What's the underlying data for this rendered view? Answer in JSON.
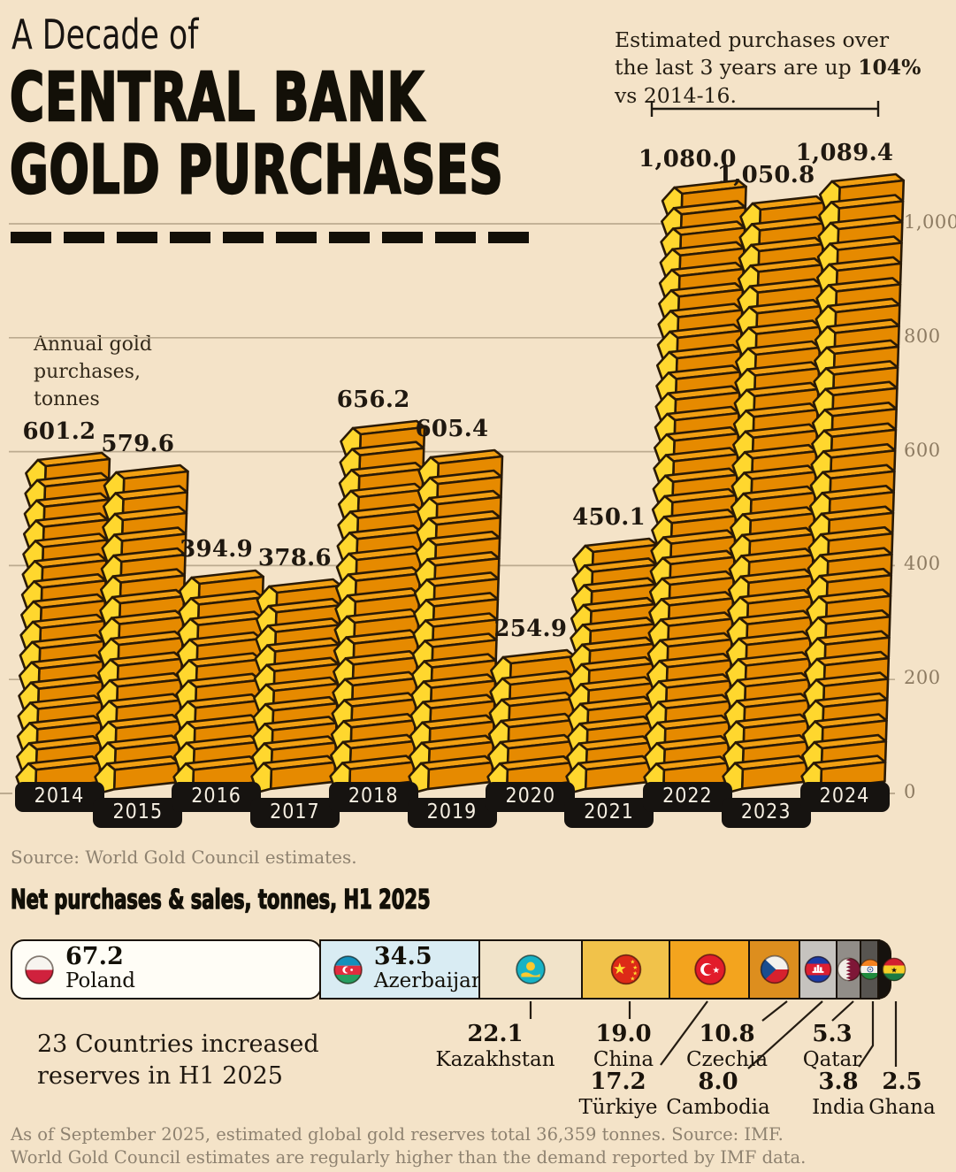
{
  "title": {
    "line1": "A Decade of",
    "line2": "CENTRAL BANK",
    "line3": "GOLD PURCHASES"
  },
  "note": {
    "pre": "Estimated purchases over the last 3 years are up ",
    "bold": "104%",
    "post": " vs 2014-16."
  },
  "source": "Source: World Gold Council estimates.",
  "chart_data": [
    {
      "type": "bar",
      "title": "A Decade of Central Bank Gold Purchases",
      "unit": "tonnes",
      "ylabel": "Annual gold purchases, tonnes",
      "ylabel_lines": [
        "Annual gold",
        "purchases,",
        "tonnes"
      ],
      "categories": [
        "2014",
        "2015",
        "2016",
        "2017",
        "2018",
        "2019",
        "2020",
        "2021",
        "2022",
        "2023",
        "2024"
      ],
      "values": [
        601.2,
        579.6,
        394.9,
        378.6,
        656.2,
        605.4,
        254.9,
        450.1,
        1080.0,
        1050.8,
        1089.4
      ],
      "value_labels": [
        "601.2",
        "579.6",
        "394.9",
        "378.6",
        "656.2",
        "605.4",
        "254.9",
        "450.1",
        "1,080.0",
        "1,050.8",
        "1,089.4"
      ],
      "yticks": [
        0,
        200,
        400,
        600,
        800,
        1000
      ],
      "ytick_labels": [
        "0",
        "200",
        "400",
        "600",
        "800",
        "1,000"
      ],
      "ylim": [
        0,
        1100
      ],
      "grid": true,
      "legend": false,
      "bracket_years": [
        "2022",
        "2023",
        "2024"
      ]
    },
    {
      "type": "bar",
      "variant": "proportional-stacked",
      "title": "Net purchases & sales, tonnes, H1 2025",
      "unit": "tonnes",
      "annotation_lines": [
        "23 Countries increased",
        "reserves in H1 2025"
      ],
      "items": [
        {
          "name": "Poland",
          "value": 67.2,
          "label": "67.2",
          "flag": "pl",
          "color": "#fffdf6"
        },
        {
          "name": "Azerbaijan",
          "value": 34.5,
          "label": "34.5",
          "flag": "az",
          "color": "#d9ecf3"
        },
        {
          "name": "Kazakhstan",
          "value": 22.1,
          "label": "22.1",
          "flag": "kz",
          "color": "#f1e3c9"
        },
        {
          "name": "China",
          "value": 19.0,
          "label": "19.0",
          "flag": "cn",
          "color": "#f1c24a"
        },
        {
          "name": "Türkiye",
          "value": 17.2,
          "label": "17.2",
          "flag": "tr",
          "color": "#f3a41e"
        },
        {
          "name": "Czechia",
          "value": 10.8,
          "label": "10.8",
          "flag": "cz",
          "color": "#dd8e1e"
        },
        {
          "name": "Cambodia",
          "value": 8.0,
          "label": "8.0",
          "flag": "kh",
          "color": "#c6c3bf"
        },
        {
          "name": "Qatar",
          "value": 5.3,
          "label": "5.3",
          "flag": "qa",
          "color": "#918d88"
        },
        {
          "name": "India",
          "value": 3.8,
          "label": "3.8",
          "flag": "in",
          "color": "#575450"
        },
        {
          "name": "Ghana",
          "value": 2.5,
          "label": "2.5",
          "flag": "gh",
          "color": "#16120e"
        }
      ]
    }
  ],
  "footer": {
    "line1": "As of September 2025, estimated global gold reserves total 36,359 tonnes. Source: IMF.",
    "line2": "World Gold Council estimates are regularly higher than the demand reported by IMF data."
  },
  "colors": {
    "background": "#f4e3c8",
    "ingot_cap": "#ffd72e",
    "ingot_top": "#f2a013",
    "ingot_front": "#e68a00",
    "ingot_outline": "#2a1a06",
    "gridline": "#bcab90",
    "tick_text": "#8d7b62",
    "year_pill": "#161310",
    "muted_text": "#8e8270",
    "ink": "#1f1810"
  }
}
